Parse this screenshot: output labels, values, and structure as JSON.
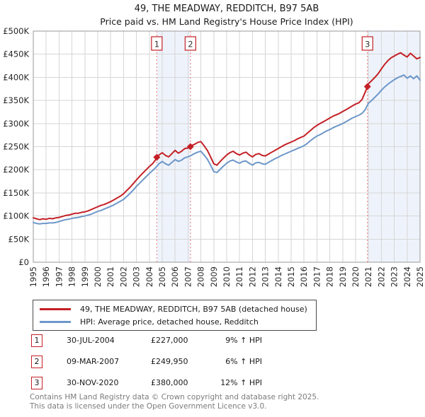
{
  "title": "49, THE MEADWAY, REDDITCH, B97 5AB",
  "subtitle": "Price paid vs. HM Land Registry's House Price Index (HPI)",
  "colors": {
    "property_line": "#c42026",
    "hpi_line": "#6d97c9",
    "sale_marker": "#c42026",
    "dashed_line": "#f08b8b",
    "band_fill": "#eef3fb",
    "grid": "#d6d6d6",
    "plot_border": "#9a9a9a",
    "number_box_border": "#c42026",
    "tick_text": "#262626",
    "footer_text": "#7b7b7b"
  },
  "sales": [
    {
      "num": "1",
      "date": "30-JUL-2004",
      "price": "£227,000",
      "hpi_diff": "9% ↑ HPI",
      "year_frac": 2004.58,
      "value_k": 227
    },
    {
      "num": "2",
      "date": "09-MAR-2007",
      "price": "£249,950",
      "hpi_diff": "6% ↑ HPI",
      "year_frac": 2007.19,
      "value_k": 249.95
    },
    {
      "num": "3",
      "date": "30-NOV-2020",
      "price": "£380,000",
      "hpi_diff": "12% ↑ HPI",
      "year_frac": 2020.92,
      "value_k": 380
    }
  ],
  "footer": {
    "line1": "Contains HM Land Registry data © Crown copyright and database right 2025.",
    "line2": "This data is licensed under the Open Government Licence v3.0."
  },
  "chart_data": {
    "type": "line",
    "title": "49, THE MEADWAY, REDDITCH, B97 5AB — Price paid vs. HPI",
    "x_range": [
      1995,
      2025
    ],
    "y_range_k": [
      0,
      500
    ],
    "values_unit": "GBP thousands",
    "grid": true,
    "legend_position": "bottom-left",
    "y_ticks_k": [
      0,
      50,
      100,
      150,
      200,
      250,
      300,
      350,
      400,
      450,
      500
    ],
    "y_tick_labels": [
      "£0",
      "£50K",
      "£100K",
      "£150K",
      "£200K",
      "£250K",
      "£300K",
      "£350K",
      "£400K",
      "£450K",
      "£500K"
    ],
    "x_tick_labels": [
      "1995",
      "1996",
      "1997",
      "1998",
      "1999",
      "2000",
      "2001",
      "2002",
      "2003",
      "2004",
      "2005",
      "2006",
      "2007",
      "2008",
      "2009",
      "2010",
      "2011",
      "2012",
      "2013",
      "2014",
      "2015",
      "2016",
      "2017",
      "2018",
      "2019",
      "2020",
      "2021",
      "2022",
      "2023",
      "2024",
      "2025"
    ],
    "bands": [
      [
        2004.58,
        2007.19
      ],
      [
        2020.92,
        2025
      ]
    ],
    "series": [
      {
        "name": "49, THE MEADWAY, REDDITCH, B97 5AB (detached house)",
        "color_key": "property_line",
        "points": [
          [
            1995.0,
            96
          ],
          [
            1995.25,
            94
          ],
          [
            1995.5,
            92
          ],
          [
            1995.75,
            94
          ],
          [
            1996.0,
            93
          ],
          [
            1996.25,
            95
          ],
          [
            1996.5,
            94
          ],
          [
            1996.75,
            96
          ],
          [
            1997.0,
            97
          ],
          [
            1997.25,
            99
          ],
          [
            1997.5,
            101
          ],
          [
            1997.75,
            102
          ],
          [
            1998.0,
            104
          ],
          [
            1998.25,
            106
          ],
          [
            1998.5,
            106
          ],
          [
            1998.75,
            108
          ],
          [
            1999.0,
            109
          ],
          [
            1999.25,
            111
          ],
          [
            1999.5,
            114
          ],
          [
            1999.75,
            117
          ],
          [
            2000.0,
            120
          ],
          [
            2000.25,
            123
          ],
          [
            2000.5,
            125
          ],
          [
            2000.75,
            128
          ],
          [
            2001.0,
            131
          ],
          [
            2001.25,
            135
          ],
          [
            2001.5,
            139
          ],
          [
            2001.75,
            143
          ],
          [
            2002.0,
            148
          ],
          [
            2002.25,
            155
          ],
          [
            2002.5,
            162
          ],
          [
            2002.75,
            170
          ],
          [
            2003.0,
            178
          ],
          [
            2003.25,
            186
          ],
          [
            2003.5,
            193
          ],
          [
            2003.75,
            200
          ],
          [
            2004.0,
            207
          ],
          [
            2004.25,
            213
          ],
          [
            2004.5,
            222
          ],
          [
            2004.58,
            227
          ],
          [
            2004.75,
            232
          ],
          [
            2005.0,
            237
          ],
          [
            2005.25,
            231
          ],
          [
            2005.5,
            228
          ],
          [
            2005.75,
            235
          ],
          [
            2006.0,
            242
          ],
          [
            2006.25,
            236
          ],
          [
            2006.5,
            240
          ],
          [
            2006.75,
            246
          ],
          [
            2007.0,
            247
          ],
          [
            2007.19,
            250
          ],
          [
            2007.25,
            252
          ],
          [
            2007.5,
            255
          ],
          [
            2007.75,
            259
          ],
          [
            2008.0,
            261
          ],
          [
            2008.25,
            252
          ],
          [
            2008.5,
            242
          ],
          [
            2008.75,
            228
          ],
          [
            2009.0,
            213
          ],
          [
            2009.25,
            210
          ],
          [
            2009.5,
            218
          ],
          [
            2009.75,
            225
          ],
          [
            2010.0,
            232
          ],
          [
            2010.25,
            237
          ],
          [
            2010.5,
            240
          ],
          [
            2010.75,
            235
          ],
          [
            2011.0,
            232
          ],
          [
            2011.25,
            236
          ],
          [
            2011.5,
            238
          ],
          [
            2011.75,
            232
          ],
          [
            2012.0,
            228
          ],
          [
            2012.25,
            233
          ],
          [
            2012.5,
            235
          ],
          [
            2012.75,
            231
          ],
          [
            2013.0,
            230
          ],
          [
            2013.25,
            234
          ],
          [
            2013.5,
            238
          ],
          [
            2013.75,
            242
          ],
          [
            2014.0,
            246
          ],
          [
            2014.25,
            250
          ],
          [
            2014.5,
            254
          ],
          [
            2014.75,
            257
          ],
          [
            2015.0,
            260
          ],
          [
            2015.25,
            263
          ],
          [
            2015.5,
            267
          ],
          [
            2015.75,
            270
          ],
          [
            2016.0,
            273
          ],
          [
            2016.25,
            279
          ],
          [
            2016.5,
            285
          ],
          [
            2016.75,
            291
          ],
          [
            2017.0,
            296
          ],
          [
            2017.25,
            300
          ],
          [
            2017.5,
            304
          ],
          [
            2017.75,
            308
          ],
          [
            2018.0,
            312
          ],
          [
            2018.25,
            316
          ],
          [
            2018.5,
            319
          ],
          [
            2018.75,
            322
          ],
          [
            2019.0,
            326
          ],
          [
            2019.25,
            330
          ],
          [
            2019.5,
            334
          ],
          [
            2019.75,
            338
          ],
          [
            2020.0,
            342
          ],
          [
            2020.25,
            345
          ],
          [
            2020.5,
            352
          ],
          [
            2020.75,
            368
          ],
          [
            2020.92,
            380
          ],
          [
            2021.0,
            386
          ],
          [
            2021.25,
            393
          ],
          [
            2021.5,
            400
          ],
          [
            2021.75,
            408
          ],
          [
            2022.0,
            418
          ],
          [
            2022.25,
            428
          ],
          [
            2022.5,
            436
          ],
          [
            2022.75,
            442
          ],
          [
            2023.0,
            446
          ],
          [
            2023.25,
            450
          ],
          [
            2023.5,
            453
          ],
          [
            2023.75,
            448
          ],
          [
            2024.0,
            444
          ],
          [
            2024.25,
            452
          ],
          [
            2024.5,
            446
          ],
          [
            2024.75,
            440
          ],
          [
            2025.0,
            443
          ]
        ]
      },
      {
        "name": "HPI: Average price, detached house, Redditch",
        "color_key": "hpi_line",
        "points": [
          [
            1995.0,
            86
          ],
          [
            1995.25,
            84
          ],
          [
            1995.5,
            83
          ],
          [
            1995.75,
            84
          ],
          [
            1996.0,
            84
          ],
          [
            1996.25,
            85
          ],
          [
            1996.5,
            85
          ],
          [
            1996.75,
            86
          ],
          [
            1997.0,
            88
          ],
          [
            1997.25,
            90
          ],
          [
            1997.5,
            92
          ],
          [
            1997.75,
            93
          ],
          [
            1998.0,
            95
          ],
          [
            1998.25,
            96
          ],
          [
            1998.5,
            97
          ],
          [
            1998.75,
            99
          ],
          [
            1999.0,
            100
          ],
          [
            1999.25,
            102
          ],
          [
            1999.5,
            104
          ],
          [
            1999.75,
            107
          ],
          [
            2000.0,
            110
          ],
          [
            2000.25,
            112
          ],
          [
            2000.5,
            115
          ],
          [
            2000.75,
            118
          ],
          [
            2001.0,
            121
          ],
          [
            2001.25,
            124
          ],
          [
            2001.5,
            128
          ],
          [
            2001.75,
            132
          ],
          [
            2002.0,
            136
          ],
          [
            2002.25,
            142
          ],
          [
            2002.5,
            149
          ],
          [
            2002.75,
            156
          ],
          [
            2003.0,
            164
          ],
          [
            2003.25,
            171
          ],
          [
            2003.5,
            178
          ],
          [
            2003.75,
            185
          ],
          [
            2004.0,
            192
          ],
          [
            2004.25,
            198
          ],
          [
            2004.5,
            205
          ],
          [
            2004.75,
            213
          ],
          [
            2005.0,
            218
          ],
          [
            2005.25,
            213
          ],
          [
            2005.5,
            210
          ],
          [
            2005.75,
            216
          ],
          [
            2006.0,
            222
          ],
          [
            2006.25,
            218
          ],
          [
            2006.5,
            221
          ],
          [
            2006.75,
            226
          ],
          [
            2007.0,
            228
          ],
          [
            2007.25,
            231
          ],
          [
            2007.5,
            235
          ],
          [
            2007.75,
            238
          ],
          [
            2008.0,
            240
          ],
          [
            2008.25,
            232
          ],
          [
            2008.5,
            223
          ],
          [
            2008.75,
            210
          ],
          [
            2009.0,
            196
          ],
          [
            2009.25,
            194
          ],
          [
            2009.5,
            201
          ],
          [
            2009.75,
            208
          ],
          [
            2010.0,
            214
          ],
          [
            2010.25,
            219
          ],
          [
            2010.5,
            221
          ],
          [
            2010.75,
            217
          ],
          [
            2011.0,
            214
          ],
          [
            2011.25,
            218
          ],
          [
            2011.5,
            219
          ],
          [
            2011.75,
            214
          ],
          [
            2012.0,
            210
          ],
          [
            2012.25,
            215
          ],
          [
            2012.5,
            216
          ],
          [
            2012.75,
            213
          ],
          [
            2013.0,
            212
          ],
          [
            2013.25,
            216
          ],
          [
            2013.5,
            220
          ],
          [
            2013.75,
            224
          ],
          [
            2014.0,
            227
          ],
          [
            2014.25,
            231
          ],
          [
            2014.5,
            234
          ],
          [
            2014.75,
            237
          ],
          [
            2015.0,
            240
          ],
          [
            2015.25,
            243
          ],
          [
            2015.5,
            246
          ],
          [
            2015.75,
            249
          ],
          [
            2016.0,
            252
          ],
          [
            2016.25,
            257
          ],
          [
            2016.5,
            263
          ],
          [
            2016.75,
            268
          ],
          [
            2017.0,
            273
          ],
          [
            2017.25,
            276
          ],
          [
            2017.5,
            280
          ],
          [
            2017.75,
            284
          ],
          [
            2018.0,
            287
          ],
          [
            2018.25,
            291
          ],
          [
            2018.5,
            294
          ],
          [
            2018.75,
            297
          ],
          [
            2019.0,
            300
          ],
          [
            2019.25,
            304
          ],
          [
            2019.5,
            308
          ],
          [
            2019.75,
            312
          ],
          [
            2020.0,
            315
          ],
          [
            2020.25,
            318
          ],
          [
            2020.5,
            322
          ],
          [
            2020.75,
            330
          ],
          [
            2021.0,
            344
          ],
          [
            2021.25,
            350
          ],
          [
            2021.5,
            357
          ],
          [
            2021.75,
            364
          ],
          [
            2022.0,
            372
          ],
          [
            2022.25,
            379
          ],
          [
            2022.5,
            385
          ],
          [
            2022.75,
            390
          ],
          [
            2023.0,
            395
          ],
          [
            2023.25,
            399
          ],
          [
            2023.5,
            402
          ],
          [
            2023.75,
            405
          ],
          [
            2024.0,
            398
          ],
          [
            2024.25,
            403
          ],
          [
            2024.5,
            397
          ],
          [
            2024.75,
            403
          ],
          [
            2025.0,
            394
          ]
        ]
      }
    ]
  }
}
